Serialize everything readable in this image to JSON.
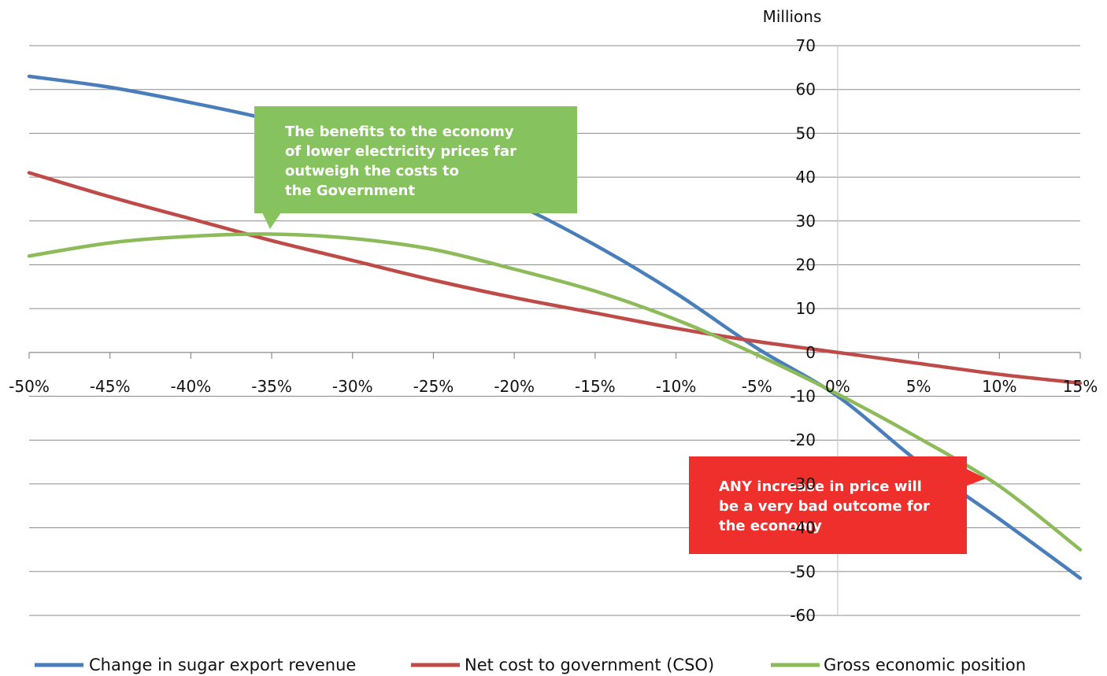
{
  "chart_data": {
    "type": "line",
    "unit_label": "Millions",
    "x": [
      -50,
      -45,
      -40,
      -35,
      -30,
      -25,
      -20,
      -15,
      -10,
      -5,
      0,
      5,
      10,
      15
    ],
    "x_tick_labels": [
      "-50%",
      "-45%",
      "-40%",
      "-35%",
      "-30%",
      "-25%",
      "-20%",
      "-15%",
      "-10%",
      "-5%",
      "0%",
      "5%",
      "10%",
      "15%"
    ],
    "y_tick_labels": [
      "70",
      "60",
      "50",
      "40",
      "30",
      "20",
      "10",
      "0",
      "-10",
      "-20",
      "-30",
      "-40",
      "-50",
      "-60"
    ],
    "y_ticks": [
      70,
      60,
      50,
      40,
      30,
      20,
      10,
      0,
      -10,
      -20,
      -30,
      -40,
      -50,
      -60
    ],
    "xlim": [
      -50,
      15
    ],
    "ylim": [
      -60,
      70
    ],
    "grid": "horizontal",
    "legend_position": "bottom",
    "series": [
      {
        "name": "Change in sugar export revenue",
        "color": "#4a7ebb",
        "values": [
          63,
          60.5,
          57,
          53,
          47.5,
          41.5,
          34,
          24.5,
          13.5,
          1,
          -10,
          -25,
          -38,
          -51.5
        ]
      },
      {
        "name": "Net cost to government (CSO)",
        "color": "#be4b48",
        "values": [
          41,
          35.5,
          30.5,
          25.5,
          21,
          16.5,
          12.5,
          9,
          5.5,
          2.5,
          0,
          -2.5,
          -5,
          -7
        ]
      },
      {
        "name": "Gross economic position",
        "color": "#8dbb5a",
        "values": [
          22,
          25,
          26.5,
          27,
          26,
          23.5,
          19,
          14,
          7.5,
          -0.5,
          -9.5,
          -19.5,
          -30.5,
          -45
        ]
      }
    ],
    "annotations": [
      {
        "text_lines": [
          "The benefits to the economy",
          "of lower electricity prices far",
          "outweigh the costs to",
          "the Government"
        ],
        "color": "#86c35f"
      },
      {
        "text_lines": [
          "ANY increase in price will",
          "be a very bad outcome for",
          "the economy"
        ],
        "color": "#ee2f2c"
      }
    ]
  }
}
